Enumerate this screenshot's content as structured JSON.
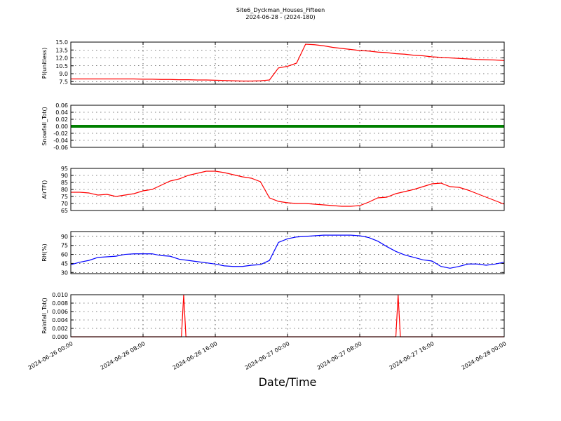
{
  "chart_data": [
    {
      "type": "line",
      "title": "Site6_Dyckman_Houses_Fifteen",
      "subtitle": "2024-06-28 - (2024-180)",
      "ylabel": "PI(unitless)",
      "xlim": [
        "2024-06-26 00:00",
        "2024-06-28 00:00"
      ],
      "ylim": [
        7,
        15
      ],
      "yticks": [
        7.5,
        {
          "value": 9,
          "label": "9.0"
        },
        10.5,
        {
          "value": 12,
          "label": "12.0"
        },
        13.5,
        {
          "value": 15,
          "label": "15.0"
        }
      ],
      "grid": true,
      "x": [
        "2024-06-26 00:00",
        "2024-06-26 01:00",
        "2024-06-26 02:00",
        "2024-06-26 03:00",
        "2024-06-26 04:00",
        "2024-06-26 05:00",
        "2024-06-26 06:00",
        "2024-06-26 07:00",
        "2024-06-26 08:00",
        "2024-06-26 09:00",
        "2024-06-26 10:00",
        "2024-06-26 11:00",
        "2024-06-26 12:00",
        "2024-06-26 13:00",
        "2024-06-26 14:00",
        "2024-06-26 15:00",
        "2024-06-26 16:00",
        "2024-06-26 17:00",
        "2024-06-26 18:00",
        "2024-06-26 19:00",
        "2024-06-26 20:00",
        "2024-06-26 21:00",
        "2024-06-26 22:00",
        "2024-06-26 23:00",
        "2024-06-27 00:00",
        "2024-06-27 01:00",
        "2024-06-27 02:00",
        "2024-06-27 03:00",
        "2024-06-27 04:00",
        "2024-06-27 05:00",
        "2024-06-27 06:00",
        "2024-06-27 07:00",
        "2024-06-27 08:00",
        "2024-06-27 09:00",
        "2024-06-27 10:00",
        "2024-06-27 11:00",
        "2024-06-27 12:00",
        "2024-06-27 13:00",
        "2024-06-27 14:00",
        "2024-06-27 15:00",
        "2024-06-27 16:00",
        "2024-06-27 17:00",
        "2024-06-27 18:00",
        "2024-06-27 19:00",
        "2024-06-27 20:00",
        "2024-06-27 21:00",
        "2024-06-27 22:00",
        "2024-06-27 23:00",
        "2024-06-28 00:00"
      ],
      "series": [
        {
          "color": "#ff0000",
          "values": [
            8.0,
            8.0,
            8.0,
            8.0,
            8.0,
            8.0,
            8.0,
            8.0,
            7.95,
            7.95,
            7.9,
            7.9,
            7.85,
            7.85,
            7.8,
            7.8,
            7.75,
            7.7,
            7.65,
            7.6,
            7.6,
            7.65,
            7.8,
            10.1,
            10.4,
            11.0,
            14.6,
            14.5,
            14.3,
            14.0,
            13.8,
            13.6,
            13.4,
            13.3,
            13.1,
            13.0,
            12.8,
            12.7,
            12.5,
            12.4,
            12.2,
            12.1,
            12.0,
            11.9,
            11.8,
            11.7,
            11.65,
            11.6,
            11.5
          ]
        }
      ]
    },
    {
      "type": "line",
      "ylabel": "Snowfall_Tot()",
      "xlim": [
        "2024-06-26 00:00",
        "2024-06-28 00:00"
      ],
      "ylim": [
        -0.06,
        0.06
      ],
      "yticks": [
        -0.06,
        -0.04,
        -0.02,
        {
          "value": 0,
          "label": "0.00"
        },
        0.02,
        0.04,
        0.06
      ],
      "grid": true,
      "x": [
        "2024-06-26 00:00",
        "2024-06-26 04:00",
        "2024-06-26 08:00",
        "2024-06-26 12:00",
        "2024-06-26 16:00",
        "2024-06-26 20:00",
        "2024-06-27 00:00",
        "2024-06-27 04:00",
        "2024-06-27 08:00",
        "2024-06-27 12:00",
        "2024-06-27 16:00",
        "2024-06-27 20:00",
        "2024-06-28 00:00"
      ],
      "series": [
        {
          "color": "#008000",
          "values": [
            0,
            0,
            0,
            0,
            0,
            0,
            0,
            0,
            0,
            0,
            0,
            0,
            0
          ]
        }
      ]
    },
    {
      "type": "line",
      "ylabel": "AirTF()",
      "xlim": [
        "2024-06-26 00:00",
        "2024-06-28 00:00"
      ],
      "ylim": [
        65,
        95
      ],
      "yticks": [
        65,
        70,
        75,
        80,
        85,
        90,
        95
      ],
      "grid": true,
      "x": [
        "2024-06-26 00:00",
        "2024-06-26 01:00",
        "2024-06-26 02:00",
        "2024-06-26 03:00",
        "2024-06-26 04:00",
        "2024-06-26 05:00",
        "2024-06-26 06:00",
        "2024-06-26 07:00",
        "2024-06-26 08:00",
        "2024-06-26 09:00",
        "2024-06-26 10:00",
        "2024-06-26 11:00",
        "2024-06-26 12:00",
        "2024-06-26 13:00",
        "2024-06-26 14:00",
        "2024-06-26 15:00",
        "2024-06-26 16:00",
        "2024-06-26 17:00",
        "2024-06-26 18:00",
        "2024-06-26 19:00",
        "2024-06-26 20:00",
        "2024-06-26 21:00",
        "2024-06-26 22:00",
        "2024-06-26 23:00",
        "2024-06-27 00:00",
        "2024-06-27 01:00",
        "2024-06-27 02:00",
        "2024-06-27 03:00",
        "2024-06-27 04:00",
        "2024-06-27 05:00",
        "2024-06-27 06:00",
        "2024-06-27 07:00",
        "2024-06-27 08:00",
        "2024-06-27 09:00",
        "2024-06-27 10:00",
        "2024-06-27 11:00",
        "2024-06-27 12:00",
        "2024-06-27 13:00",
        "2024-06-27 14:00",
        "2024-06-27 15:00",
        "2024-06-27 16:00",
        "2024-06-27 17:00",
        "2024-06-27 18:00",
        "2024-06-27 19:00",
        "2024-06-27 20:00",
        "2024-06-27 21:00",
        "2024-06-27 22:00",
        "2024-06-27 23:00",
        "2024-06-28 00:00"
      ],
      "series": [
        {
          "color": "#ff0000",
          "values": [
            78,
            78,
            77.5,
            76,
            76.5,
            75,
            76,
            77,
            79,
            80,
            83,
            86,
            87.5,
            90,
            91.5,
            93,
            93,
            92,
            90.5,
            89,
            88,
            85.5,
            74,
            71.5,
            70.5,
            70,
            70,
            69.5,
            69,
            68.5,
            68,
            68,
            68.5,
            71,
            74,
            74.5,
            77,
            78.5,
            80,
            82,
            84,
            84.5,
            82,
            81.5,
            79.5,
            77,
            74.5,
            72,
            69.5
          ]
        }
      ]
    },
    {
      "type": "line",
      "ylabel": "RH(%)",
      "xlim": [
        "2024-06-26 00:00",
        "2024-06-28 00:00"
      ],
      "ylim": [
        28,
        98
      ],
      "yticks": [
        30,
        45,
        60,
        75,
        90
      ],
      "grid": true,
      "x": [
        "2024-06-26 00:00",
        "2024-06-26 01:00",
        "2024-06-26 02:00",
        "2024-06-26 03:00",
        "2024-06-26 04:00",
        "2024-06-26 05:00",
        "2024-06-26 06:00",
        "2024-06-26 07:00",
        "2024-06-26 08:00",
        "2024-06-26 09:00",
        "2024-06-26 10:00",
        "2024-06-26 11:00",
        "2024-06-26 12:00",
        "2024-06-26 13:00",
        "2024-06-26 14:00",
        "2024-06-26 15:00",
        "2024-06-26 16:00",
        "2024-06-26 17:00",
        "2024-06-26 18:00",
        "2024-06-26 19:00",
        "2024-06-26 20:00",
        "2024-06-26 21:00",
        "2024-06-26 22:00",
        "2024-06-26 23:00",
        "2024-06-27 00:00",
        "2024-06-27 01:00",
        "2024-06-27 02:00",
        "2024-06-27 03:00",
        "2024-06-27 04:00",
        "2024-06-27 05:00",
        "2024-06-27 06:00",
        "2024-06-27 07:00",
        "2024-06-27 08:00",
        "2024-06-27 09:00",
        "2024-06-27 10:00",
        "2024-06-27 11:00",
        "2024-06-27 12:00",
        "2024-06-27 13:00",
        "2024-06-27 14:00",
        "2024-06-27 15:00",
        "2024-06-27 16:00",
        "2024-06-27 17:00",
        "2024-06-27 18:00",
        "2024-06-27 19:00",
        "2024-06-27 20:00",
        "2024-06-27 21:00",
        "2024-06-27 22:00",
        "2024-06-27 23:00",
        "2024-06-28 00:00"
      ],
      "series": [
        {
          "color": "#0000ff",
          "values": [
            43,
            47,
            50,
            55,
            56,
            57,
            60,
            61,
            61,
            61,
            58,
            57,
            52,
            50,
            48,
            46,
            44,
            41,
            40,
            40,
            42,
            43,
            50,
            80,
            86,
            89,
            90,
            91,
            92,
            92,
            92,
            92,
            91,
            88,
            82,
            73,
            65,
            59,
            55,
            51,
            49,
            40,
            37,
            40,
            44,
            44,
            42,
            44,
            47
          ]
        }
      ]
    },
    {
      "type": "line",
      "ylabel": "Rainfall_Tot()",
      "xlabel": "Date/Time",
      "xlim": [
        "2024-06-26 00:00",
        "2024-06-28 00:00"
      ],
      "ylim": [
        0,
        0.01
      ],
      "yticks": [
        {
          "value": 0,
          "label": "0.000"
        },
        0.002,
        0.004,
        0.006,
        0.008,
        {
          "value": 0.01,
          "label": "0.010"
        }
      ],
      "grid": true,
      "xticks": [
        "2024-06-26 00:00",
        "2024-06-26 08:00",
        "2024-06-26 16:00",
        "2024-06-27 00:00",
        "2024-06-27 08:00",
        "2024-06-27 16:00",
        "2024-06-28 00:00"
      ],
      "x": [
        "2024-06-26 00:00",
        "2024-06-26 12:15",
        "2024-06-26 12:30",
        "2024-06-26 12:45",
        "2024-06-27 12:00",
        "2024-06-27 12:15",
        "2024-06-27 12:30",
        "2024-06-28 00:00"
      ],
      "series": [
        {
          "color": "#ff0000",
          "values": [
            0,
            0,
            0.01,
            0,
            0,
            0.01,
            0,
            0
          ]
        }
      ]
    }
  ]
}
